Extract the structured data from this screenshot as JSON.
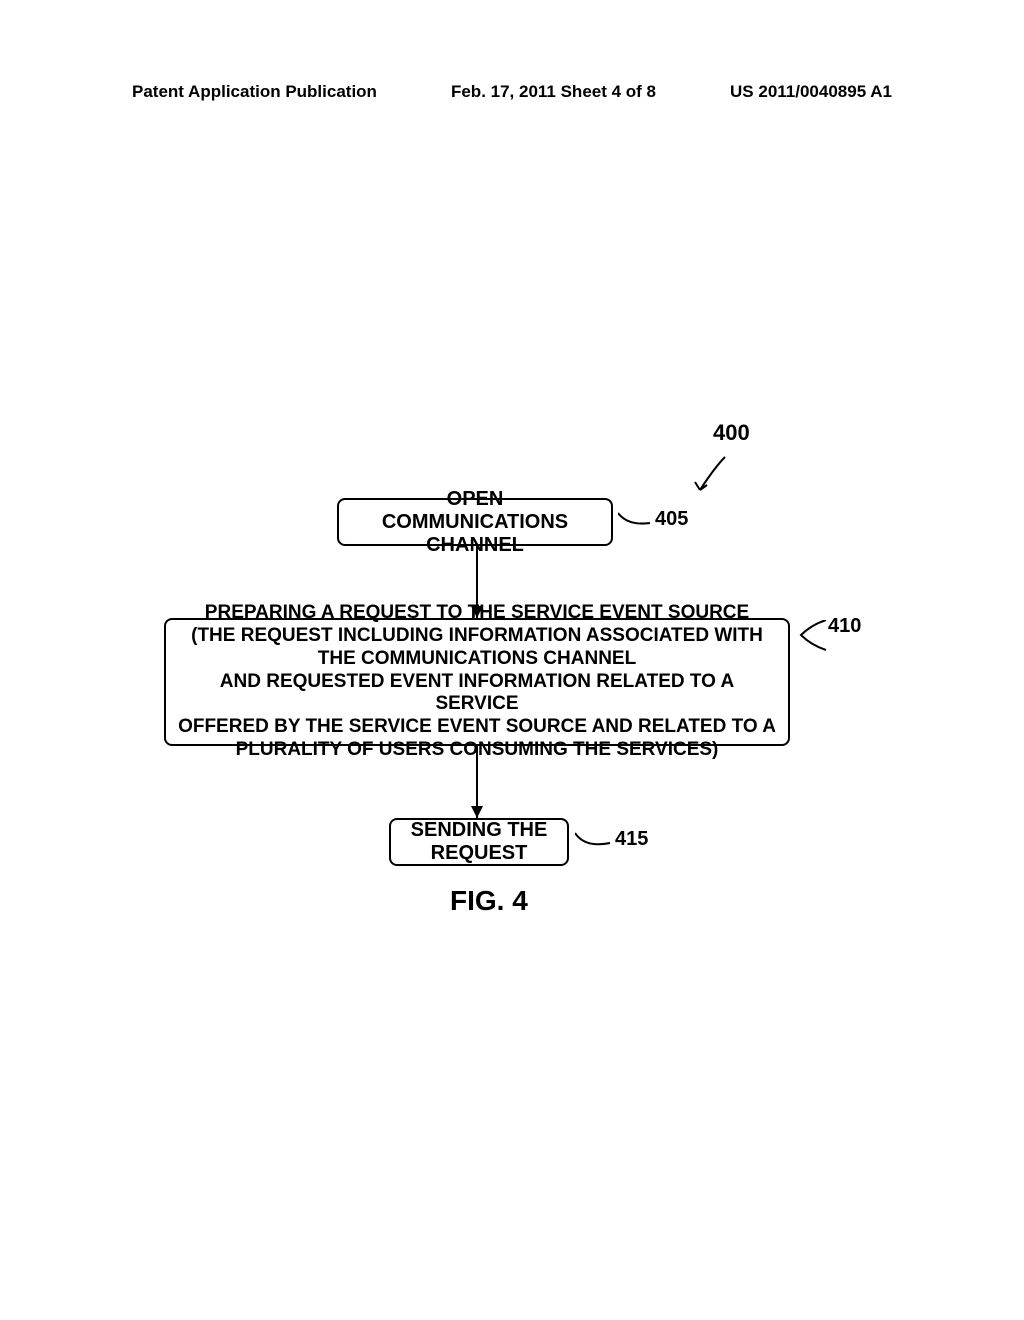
{
  "header": {
    "left": "Patent Application Publication",
    "center": "Feb. 17, 2011  Sheet 4 of 8",
    "right": "US 2011/0040895 A1"
  },
  "diagram": {
    "type": "flowchart",
    "ref_main": "400",
    "nodes": [
      {
        "id": "405",
        "text": "OPEN COMMUNICATIONS CHANNEL",
        "ref": "405"
      },
      {
        "id": "410",
        "text": "PREPARING A REQUEST TO THE SERVICE EVENT SOURCE\n(THE REQUEST INCLUDING INFORMATION ASSOCIATED WITH THE COMMUNICATIONS CHANNEL\nAND REQUESTED EVENT INFORMATION RELATED TO A SERVICE\nOFFERED BY THE SERVICE EVENT SOURCE AND RELATED TO A\nPLURALITY OF USERS CONSUMING THE SERVICES)",
        "ref": "410"
      },
      {
        "id": "415",
        "text": "SENDING THE REQUEST",
        "ref": "415"
      }
    ],
    "figure_label": "FIG. 4"
  }
}
